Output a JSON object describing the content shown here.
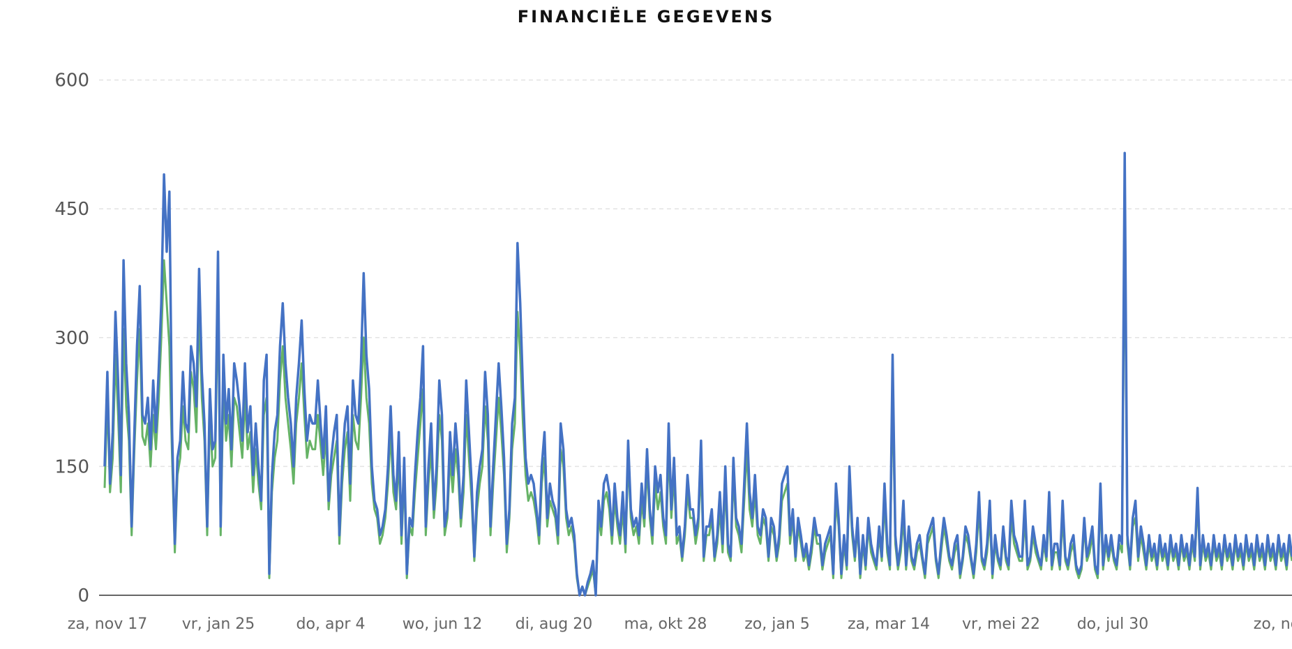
{
  "title": "FINANCIËLE GEGEVENS",
  "chart_data": {
    "type": "line",
    "title": "FINANCIËLE GEGEVENS",
    "xlabel": "",
    "ylabel": "",
    "ylim": [
      0,
      620
    ],
    "yticks": [
      0,
      150,
      300,
      450,
      600
    ],
    "grid": true,
    "legend": "none",
    "x_tick_labels": [
      "za, nov 17",
      "vr, jan 25",
      "do, apr 4",
      "wo, jun 12",
      "di, aug 20",
      "ma, okt 28",
      "zo, jan 5",
      "za, mar 14",
      "vr, mei 22",
      "do, jul 30",
      "zo, no"
    ],
    "colors": {
      "series_a": "#66b366",
      "series_b": "#4472c4"
    },
    "series": [
      {
        "values": [
          125,
          230,
          120,
          160,
          280,
          210,
          120,
          310,
          220,
          180,
          70,
          170,
          250,
          310,
          185,
          175,
          200,
          150,
          210,
          170,
          225,
          300,
          390,
          340,
          290,
          160,
          50,
          140,
          160,
          220,
          180,
          170,
          260,
          240,
          190,
          330,
          230,
          180,
          70,
          210,
          150,
          160,
          350,
          70,
          240,
          180,
          210,
          150,
          230,
          220,
          190,
          160,
          230,
          170,
          190,
          120,
          170,
          130,
          100,
          210,
          230,
          20,
          120,
          160,
          180,
          250,
          290,
          230,
          200,
          170,
          130,
          200,
          230,
          270,
          210,
          160,
          180,
          170,
          170,
          210,
          175,
          140,
          190,
          100,
          140,
          160,
          180,
          60,
          130,
          170,
          190,
          110,
          210,
          180,
          170,
          230,
          300,
          230,
          200,
          130,
          100,
          90,
          60,
          70,
          90,
          130,
          190,
          120,
          100,
          160,
          60,
          140,
          20,
          80,
          70,
          120,
          160,
          200,
          240,
          70,
          130,
          170,
          90,
          130,
          210,
          180,
          70,
          90,
          160,
          120,
          170,
          140,
          80,
          120,
          210,
          160,
          110,
          40,
          100,
          130,
          150,
          220,
          180,
          70,
          130,
          180,
          230,
          190,
          140,
          50,
          90,
          170,
          200,
          330,
          280,
          200,
          140,
          110,
          120,
          110,
          90,
          60,
          130,
          160,
          80,
          110,
          100,
          90,
          60,
          170,
          150,
          90,
          70,
          80,
          60,
          20,
          0,
          10,
          0,
          10,
          20,
          30,
          0,
          90,
          70,
          110,
          120,
          100,
          60,
          110,
          80,
          60,
          100,
          50,
          160,
          90,
          70,
          80,
          60,
          110,
          80,
          150,
          90,
          60,
          130,
          100,
          120,
          80,
          60,
          170,
          90,
          140,
          60,
          70,
          40,
          70,
          120,
          90,
          90,
          60,
          80,
          150,
          40,
          70,
          70,
          90,
          40,
          60,
          100,
          50,
          130,
          50,
          40,
          140,
          80,
          70,
          50,
          110,
          170,
          100,
          80,
          120,
          70,
          60,
          90,
          80,
          40,
          80,
          70,
          40,
          60,
          110,
          120,
          130,
          60,
          90,
          40,
          80,
          60,
          40,
          50,
          30,
          50,
          80,
          60,
          60,
          30,
          50,
          60,
          70,
          20,
          110,
          80,
          20,
          60,
          30,
          130,
          70,
          40,
          80,
          20,
          60,
          30,
          80,
          50,
          40,
          30,
          70,
          40,
          110,
          50,
          30,
          240,
          60,
          30,
          50,
          90,
          30,
          70,
          40,
          30,
          50,
          60,
          40,
          20,
          60,
          70,
          80,
          40,
          20,
          50,
          80,
          60,
          40,
          30,
          50,
          60,
          20,
          40,
          70,
          60,
          40,
          20,
          50,
          100,
          40,
          30,
          50,
          90,
          20,
          60,
          40,
          30,
          70,
          40,
          30,
          90,
          60,
          50,
          40,
          40,
          90,
          30,
          40,
          70,
          50,
          40,
          30,
          60,
          40,
          100,
          30,
          50,
          50,
          30,
          90,
          40,
          30,
          50,
          60,
          30,
          20,
          30,
          80,
          40,
          50,
          70,
          30,
          20,
          110,
          30,
          60,
          40,
          60,
          40,
          30,
          60,
          50,
          440,
          60,
          30,
          80,
          90,
          40,
          70,
          50,
          30,
          60,
          40,
          50,
          30,
          60,
          40,
          50,
          30,
          60,
          40,
          50,
          30,
          60,
          40,
          50,
          30,
          60,
          40,
          110,
          30,
          60,
          40,
          50,
          30,
          60,
          40,
          50,
          30,
          60,
          40,
          50,
          30,
          60,
          40,
          50,
          30,
          60,
          40,
          50,
          30,
          60,
          40,
          50,
          30,
          60,
          40,
          50,
          30,
          60,
          40,
          50,
          30,
          60,
          40
        ]
      },
      {
        "values": [
          150,
          260,
          130,
          190,
          330,
          250,
          140,
          390,
          270,
          210,
          80,
          190,
          290,
          360,
          210,
          200,
          230,
          170,
          250,
          190,
          260,
          340,
          490,
          400,
          470,
          190,
          60,
          160,
          180,
          260,
          200,
          190,
          290,
          270,
          220,
          380,
          260,
          200,
          80,
          240,
          170,
          180,
          400,
          80,
          280,
          200,
          240,
          170,
          270,
          250,
          220,
          180,
          270,
          190,
          220,
          140,
          200,
          150,
          110,
          250,
          280,
          25,
          140,
          190,
          210,
          290,
          340,
          270,
          230,
          200,
          150,
          230,
          270,
          320,
          240,
          180,
          210,
          200,
          200,
          250,
          200,
          160,
          220,
          110,
          160,
          190,
          210,
          70,
          150,
          200,
          220,
          130,
          250,
          210,
          200,
          270,
          375,
          280,
          240,
          150,
          110,
          100,
          70,
          80,
          100,
          150,
          220,
          140,
          110,
          190,
          70,
          160,
          25,
          90,
          80,
          140,
          190,
          230,
          290,
          80,
          150,
          200,
          100,
          150,
          250,
          210,
          80,
          100,
          190,
          140,
          200,
          160,
          90,
          140,
          250,
          190,
          130,
          45,
          120,
          150,
          170,
          260,
          210,
          80,
          150,
          210,
          270,
          220,
          160,
          60,
          100,
          200,
          230,
          410,
          340,
          240,
          160,
          130,
          140,
          130,
          100,
          70,
          150,
          190,
          90,
          130,
          110,
          100,
          70,
          200,
          170,
          100,
          80,
          90,
          70,
          25,
          0,
          10,
          0,
          15,
          25,
          40,
          0,
          110,
          80,
          130,
          140,
          120,
          70,
          130,
          90,
          70,
          120,
          60,
          180,
          100,
          80,
          90,
          70,
          130,
          90,
          170,
          100,
          70,
          150,
          120,
          140,
          90,
          70,
          200,
          100,
          160,
          70,
          80,
          45,
          80,
          140,
          100,
          100,
          70,
          90,
          180,
          45,
          80,
          80,
          100,
          45,
          70,
          120,
          60,
          150,
          60,
          45,
          160,
          90,
          80,
          60,
          130,
          200,
          120,
          90,
          140,
          80,
          70,
          100,
          90,
          45,
          90,
          80,
          45,
          70,
          130,
          140,
          150,
          70,
          100,
          45,
          90,
          70,
          45,
          60,
          35,
          60,
          90,
          70,
          70,
          35,
          60,
          70,
          80,
          25,
          130,
          90,
          25,
          70,
          35,
          150,
          80,
          45,
          90,
          25,
          70,
          35,
          90,
          60,
          45,
          35,
          80,
          45,
          130,
          60,
          35,
          280,
          70,
          35,
          60,
          110,
          35,
          80,
          45,
          35,
          60,
          70,
          45,
          25,
          70,
          80,
          90,
          45,
          25,
          60,
          90,
          70,
          45,
          35,
          60,
          70,
          25,
          45,
          80,
          70,
          45,
          25,
          60,
          120,
          45,
          35,
          60,
          110,
          25,
          70,
          45,
          35,
          80,
          45,
          35,
          110,
          70,
          60,
          45,
          45,
          110,
          35,
          45,
          80,
          60,
          45,
          35,
          70,
          45,
          120,
          35,
          60,
          60,
          35,
          110,
          45,
          35,
          60,
          70,
          35,
          25,
          35,
          90,
          45,
          60,
          80,
          35,
          25,
          130,
          35,
          70,
          45,
          70,
          45,
          35,
          70,
          60,
          515,
          70,
          35,
          90,
          110,
          45,
          80,
          60,
          35,
          70,
          45,
          60,
          35,
          70,
          45,
          60,
          35,
          70,
          45,
          60,
          35,
          70,
          45,
          60,
          35,
          70,
          45,
          125,
          35,
          70,
          45,
          60,
          35,
          70,
          45,
          60,
          35,
          70,
          45,
          60,
          35,
          70,
          45,
          60,
          35,
          70,
          45,
          60,
          35,
          70,
          45,
          60,
          35,
          70,
          45,
          60,
          35,
          70,
          45,
          60,
          35,
          70,
          45
        ]
      }
    ]
  }
}
